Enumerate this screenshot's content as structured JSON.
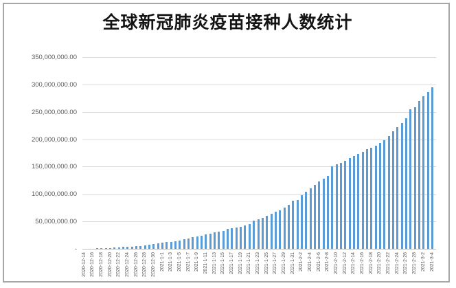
{
  "window": {
    "background_color": "#ffffff",
    "frame_border_color": "#a6a6a6"
  },
  "chart_data": {
    "type": "bar",
    "title": "全球新冠肺炎疫苗接种人数统计",
    "xlabel": "",
    "ylabel": "",
    "legend": "none",
    "grid": "horizontal",
    "ylim": [
      0,
      350000000
    ],
    "y_tick_interval": 50000000,
    "y_tick_labels": [
      "350,000,000.00",
      "300,000,000.00",
      "250,000,000.00",
      "200,000,000.00",
      "150,000,000.00",
      "100,000,000.00",
      "50,000,000.00",
      "-"
    ],
    "x_label_every_n": 2,
    "x_label_reading": "bottom-to-top",
    "bar_color": "#5b9bd5",
    "grid_color": "#d9d9d9",
    "axis_line_color": "#bfbfbf",
    "tick_label_color": "#595959",
    "categories": [
      "2020-12-14",
      "2020-12-15",
      "2020-12-16",
      "2020-12-17",
      "2020-12-18",
      "2020-12-19",
      "2020-12-20",
      "2020-12-21",
      "2020-12-22",
      "2020-12-23",
      "2020-12-24",
      "2020-12-25",
      "2020-12-26",
      "2020-12-27",
      "2020-12-28",
      "2020-12-29",
      "2020-12-30",
      "2020-12-31",
      "2021-1-1",
      "2021-1-2",
      "2021-1-3",
      "2021-1-4",
      "2021-1-5",
      "2021-1-6",
      "2021-1-7",
      "2021-1-8",
      "2021-1-9",
      "2021-1-10",
      "2021-1-11",
      "2021-1-12",
      "2021-1-13",
      "2021-1-14",
      "2021-1-15",
      "2021-1-16",
      "2021-1-17",
      "2021-1-18",
      "2021-1-19",
      "2021-1-20",
      "2021-1-21",
      "2021-1-22",
      "2021-1-23",
      "2021-1-24",
      "2021-1-25",
      "2021-1-26",
      "2021-1-27",
      "2021-1-28",
      "2021-1-29",
      "2021-1-30",
      "2021-1-31",
      "2021-2-1",
      "2021-2-2",
      "2021-2-3",
      "2021-2-4",
      "2021-2-5",
      "2021-2-6",
      "2021-2-7",
      "2021-2-8",
      "2021-2-9",
      "2021-2-10",
      "2021-2-11",
      "2021-2-12",
      "2021-2-13",
      "2021-2-14",
      "2021-2-15",
      "2021-2-16",
      "2021-2-17",
      "2021-2-18",
      "2021-2-19",
      "2021-2-20",
      "2021-2-21",
      "2021-2-22",
      "2021-2-23",
      "2021-2-24",
      "2021-2-25",
      "2021-2-26",
      "2021-2-27",
      "2021-2-28",
      "2021-3-1",
      "2021-3-2",
      "2021-3-3",
      "2021-3-4"
    ],
    "values": [
      100000,
      200000,
      500000,
      800000,
      1100000,
      1400000,
      1700000,
      2100000,
      2600000,
      3200000,
      3800000,
      4300000,
      4800000,
      5400000,
      6000000,
      7200000,
      8500000,
      9800000,
      11000000,
      12000000,
      13000000,
      14200000,
      15600000,
      17200000,
      19000000,
      21000000,
      22800000,
      24300000,
      26000000,
      28000000,
      30000000,
      31800000,
      33200000,
      35800000,
      37600000,
      38900000,
      40200000,
      42300000,
      45100000,
      51400000,
      53900000,
      56000000,
      60200000,
      64300000,
      68100000,
      70300000,
      75200000,
      79900000,
      87400000,
      89500000,
      97400000,
      104000000,
      110000000,
      117000000,
      123000000,
      128000000,
      133500000,
      151000000,
      154200000,
      157200000,
      160500000,
      165500000,
      169000000,
      173100000,
      177200000,
      181400000,
      184500000,
      188500000,
      193000000,
      198500000,
      206000000,
      214000000,
      222000000,
      230000000,
      238600000,
      254200000,
      258700000,
      270000000,
      278400000,
      286000000,
      294300000
    ]
  }
}
